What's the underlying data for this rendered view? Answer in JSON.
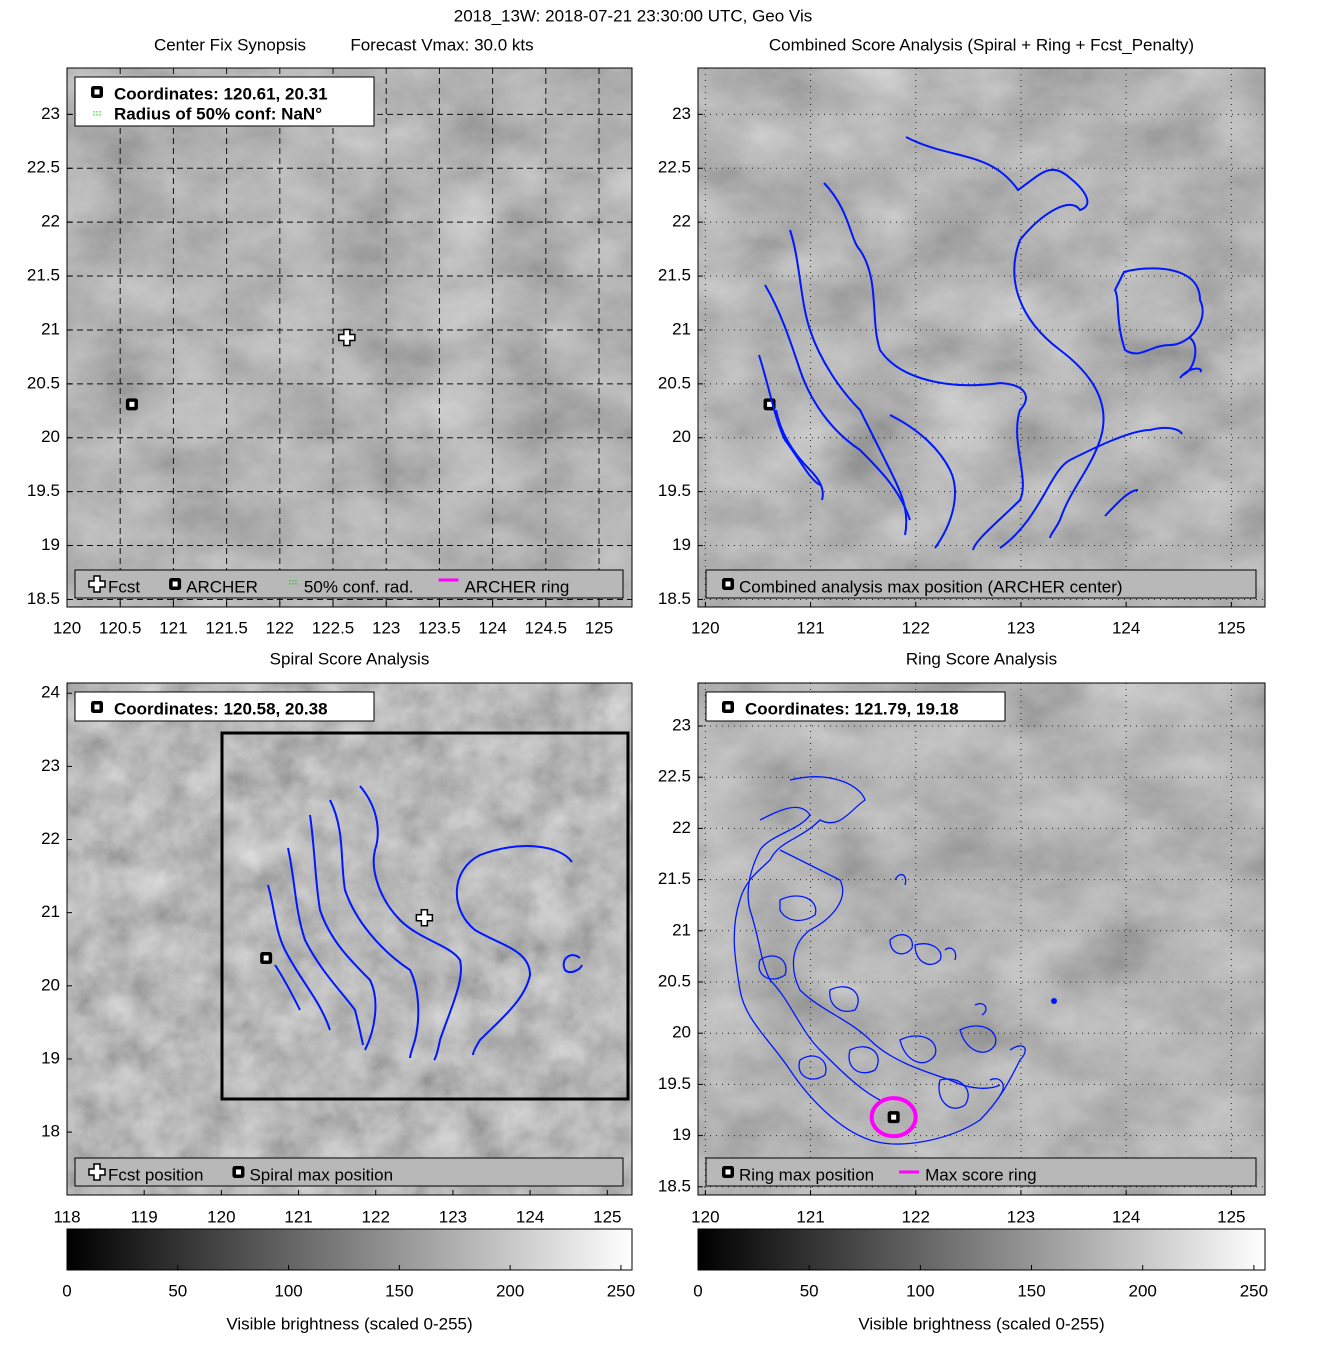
{
  "figure_title": "2018_13W: 2018-07-21 23:30:00 UTC, Geo Vis",
  "chart_data": [
    {
      "type": "map",
      "title": "Center Fix Synopsis",
      "subtitle": "Forecast Vmax: 30.0 kts",
      "xlim": [
        120,
        125.31
      ],
      "ylim": [
        18.43,
        23.43
      ],
      "xticks": [
        120,
        120.5,
        121,
        121.5,
        122,
        122.5,
        123,
        123.5,
        124,
        124.5,
        125
      ],
      "yticks": [
        18.5,
        19,
        19.5,
        20,
        20.5,
        21,
        21.5,
        22,
        22.5,
        23
      ],
      "grid": "dashed",
      "info": [
        "Coordinates: 120.61, 20.31",
        "Radius of 50% conf: NaN°"
      ],
      "series": [
        {
          "name": "Fcst",
          "marker": "cross",
          "color": "#ffffff",
          "x": [
            122.63
          ],
          "y": [
            20.93
          ]
        },
        {
          "name": "ARCHER",
          "marker": "square",
          "color": "#000000",
          "x": [
            120.61
          ],
          "y": [
            20.31
          ]
        },
        {
          "name": "50% conf. rad.",
          "marker": "dots",
          "color": "#00cc00",
          "x": [],
          "y": []
        },
        {
          "name": "ARCHER ring",
          "marker": "line",
          "color": "#ff00ff",
          "x": [],
          "y": []
        }
      ]
    },
    {
      "type": "map",
      "title": "Combined Score Analysis (Spiral + Ring + Fcst_Penalty)",
      "xlim": [
        119.93,
        125.32
      ],
      "ylim": [
        18.43,
        23.43
      ],
      "xticks": [
        120,
        121,
        122,
        123,
        124,
        125
      ],
      "yticks": [
        18.5,
        19,
        19.5,
        20,
        20.5,
        21,
        21.5,
        22,
        22.5,
        23
      ],
      "grid": "dotted",
      "info": [],
      "series": [
        {
          "name": "Combined analysis max position (ARCHER center)",
          "marker": "square",
          "color": "#000000",
          "x": [
            120.61
          ],
          "y": [
            20.31
          ]
        }
      ]
    },
    {
      "type": "map",
      "title": "Spiral Score Analysis",
      "xlim": [
        118,
        125.32
      ],
      "ylim": [
        17.14,
        24.14
      ],
      "xticks": [
        118,
        119,
        120,
        121,
        122,
        123,
        124,
        125
      ],
      "yticks": [
        18,
        19,
        20,
        21,
        22,
        23,
        24
      ],
      "grid": "none",
      "info": [
        "Coordinates: 120.58, 20.38"
      ],
      "series": [
        {
          "name": "Fcst position",
          "marker": "cross",
          "color": "#ffffff",
          "x": [
            122.63
          ],
          "y": [
            20.93
          ]
        },
        {
          "name": "Spiral max position",
          "marker": "square",
          "color": "#000000",
          "x": [
            120.58
          ],
          "y": [
            20.38
          ]
        }
      ]
    },
    {
      "type": "map",
      "title": "Ring Score Analysis",
      "xlim": [
        119.93,
        125.32
      ],
      "ylim": [
        18.42,
        23.42
      ],
      "xticks": [
        120,
        121,
        122,
        123,
        124,
        125
      ],
      "yticks": [
        18.5,
        19,
        19.5,
        20,
        20.5,
        21,
        21.5,
        22,
        22.5,
        23
      ],
      "grid": "dotted",
      "info": [
        "Coordinates: 121.79, 19.18"
      ],
      "series": [
        {
          "name": "Ring max position",
          "marker": "square",
          "color": "#000000",
          "x": [
            121.79
          ],
          "y": [
            19.18
          ]
        },
        {
          "name": "Max score ring",
          "marker": "ring",
          "color": "#ff00ff",
          "x": [
            121.79
          ],
          "y": [
            19.18
          ]
        }
      ]
    },
    {
      "type": "colorbar",
      "label": "Visible brightness (scaled 0-255)",
      "xlim": [
        0,
        255
      ],
      "xticks": [
        0,
        50,
        100,
        150,
        200,
        250
      ]
    },
    {
      "type": "colorbar",
      "label": "Visible brightness (scaled 0-255)",
      "xlim": [
        0,
        255
      ],
      "xticks": [
        0,
        50,
        100,
        150,
        200,
        250
      ]
    }
  ]
}
